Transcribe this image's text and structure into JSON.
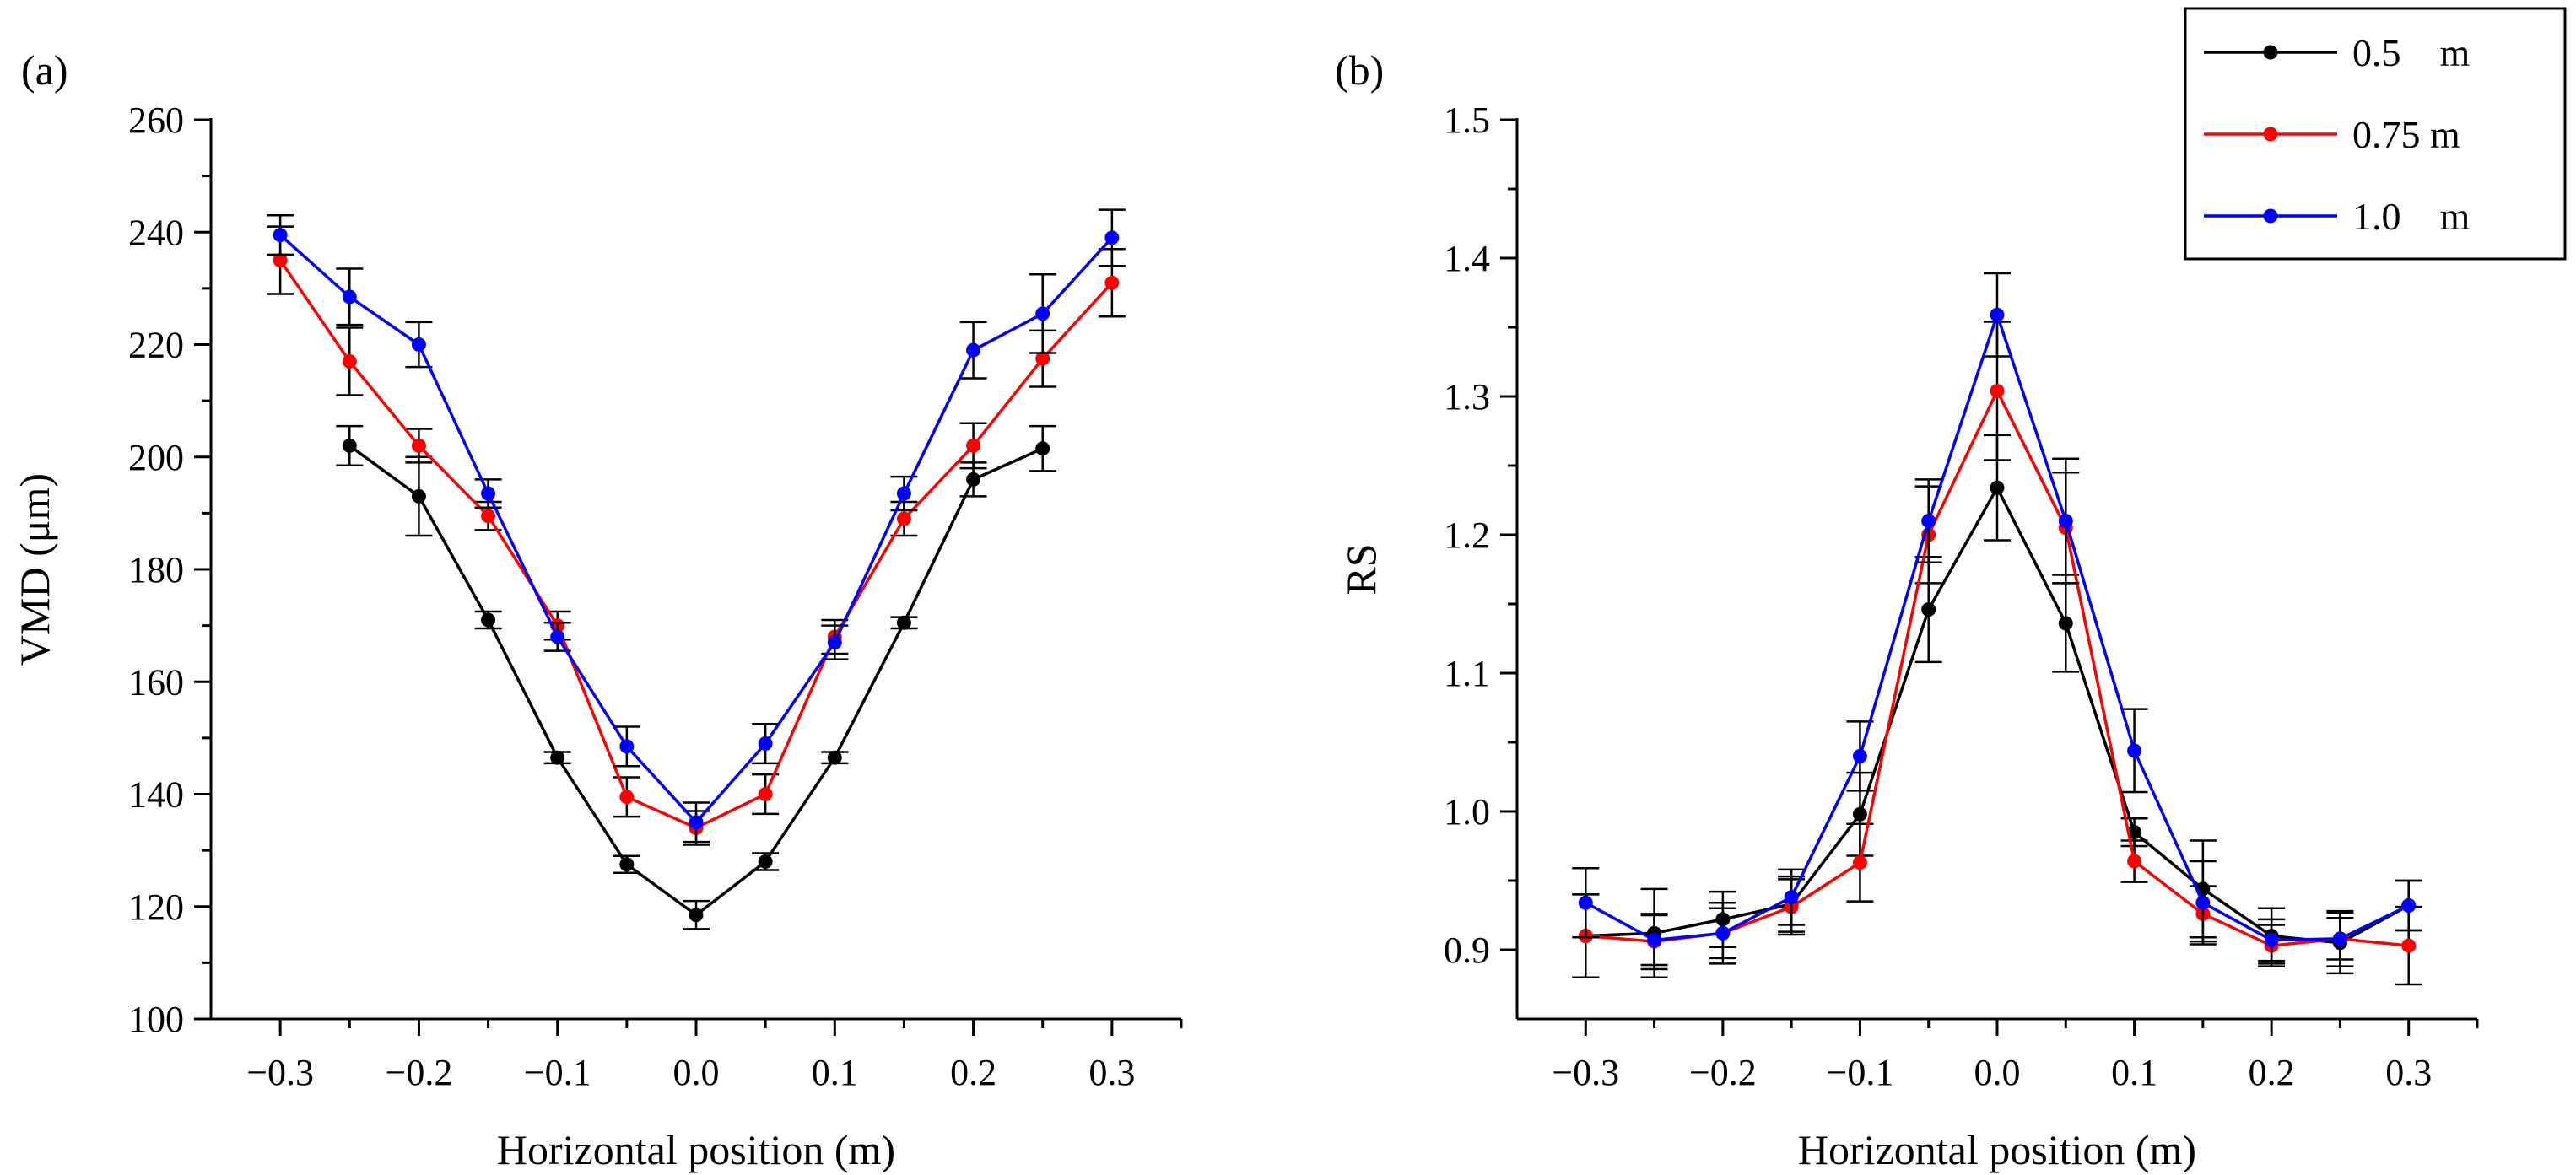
{
  "chart_data": [
    {
      "type": "line",
      "panel_label": "(a)",
      "title": "",
      "xlabel": "Horizontal position (m)",
      "ylabel": "VMD (μm)",
      "xlim": [
        -0.35,
        0.35
      ],
      "ylim": [
        100,
        260
      ],
      "xticks": [
        -0.3,
        -0.2,
        -0.1,
        0.0,
        0.1,
        0.2,
        0.3
      ],
      "xtick_labels": [
        "−0.3",
        "−0.2",
        "−0.1",
        "0.0",
        "0.1",
        "0.2",
        "0.3"
      ],
      "yticks": [
        100,
        120,
        140,
        160,
        180,
        200,
        220,
        240,
        260
      ],
      "ytick_labels": [
        "100",
        "120",
        "140",
        "160",
        "180",
        "200",
        "220",
        "240",
        "260"
      ],
      "grid": false,
      "x": [
        -0.3,
        -0.25,
        -0.2,
        -0.15,
        -0.1,
        -0.05,
        0.0,
        0.05,
        0.1,
        0.15,
        0.2,
        0.25,
        0.3
      ],
      "series": [
        {
          "name": "0.5 m",
          "color": "#000000",
          "x": [
            -0.25,
            -0.2,
            -0.15,
            -0.1,
            -0.05,
            0.0,
            0.05,
            0.1,
            0.15,
            0.2,
            0.25
          ],
          "values": [
            202,
            193,
            171,
            146.5,
            127.5,
            118.5,
            128,
            146.5,
            170.5,
            196,
            201.5
          ],
          "errors": [
            3.5,
            7,
            1.5,
            1,
            1.5,
            2.5,
            1.5,
            1,
            1,
            3,
            4
          ]
        },
        {
          "name": "0.75 m",
          "color": "#ff0000",
          "x": [
            -0.3,
            -0.25,
            -0.2,
            -0.15,
            -0.1,
            -0.05,
            0.0,
            0.05,
            0.1,
            0.15,
            0.2,
            0.25,
            0.3
          ],
          "values": [
            235,
            217,
            202,
            189.5,
            170,
            139.5,
            134,
            140,
            168,
            189,
            202,
            217.5,
            231
          ],
          "errors": [
            6,
            6,
            3,
            2.5,
            2.5,
            3.5,
            3,
            3.5,
            3,
            3,
            4,
            5,
            6
          ]
        },
        {
          "name": "1.0 m",
          "color": "#0000ff",
          "x": [
            -0.3,
            -0.25,
            -0.2,
            -0.15,
            -0.1,
            -0.05,
            0.0,
            0.05,
            0.1,
            0.15,
            0.2,
            0.25,
            0.3
          ],
          "values": [
            239.5,
            228.5,
            220,
            193.5,
            168,
            148.5,
            135,
            149,
            167,
            193.5,
            219,
            225.5,
            239
          ],
          "errors": [
            3.5,
            5,
            4,
            2.5,
            2.5,
            3.5,
            3.5,
            3.5,
            3,
            3,
            5,
            7,
            5
          ]
        }
      ]
    },
    {
      "type": "line",
      "panel_label": "(b)",
      "title": "",
      "xlabel": "Horizontal position (m)",
      "ylabel": "RS",
      "xlim": [
        -0.35,
        0.35
      ],
      "ylim": [
        0.85,
        1.5
      ],
      "xticks": [
        -0.3,
        -0.2,
        -0.1,
        0.0,
        0.1,
        0.2,
        0.3
      ],
      "xtick_labels": [
        "−0.3",
        "−0.2",
        "−0.1",
        "0.0",
        "0.1",
        "0.2",
        "0.3"
      ],
      "yticks": [
        0.9,
        1.0,
        1.1,
        1.2,
        1.3,
        1.4,
        1.5
      ],
      "ytick_labels": [
        "0.9",
        "1.0",
        "1.1",
        "1.2",
        "1.3",
        "1.4",
        "1.5"
      ],
      "grid": false,
      "x": [
        -0.3,
        -0.25,
        -0.2,
        -0.15,
        -0.1,
        -0.05,
        0.0,
        0.05,
        0.1,
        0.15,
        0.2,
        0.25,
        0.3
      ],
      "series": [
        {
          "name": "0.5 m",
          "color": "#000000",
          "x": [
            -0.3,
            -0.25,
            -0.2,
            -0.15,
            -0.1,
            -0.05,
            0.0,
            0.05,
            0.1,
            0.15,
            0.2,
            0.25,
            0.3
          ],
          "values": [
            0.91,
            0.912,
            0.922,
            0.933,
            0.998,
            1.146,
            1.234,
            1.136,
            0.985,
            0.944,
            0.91,
            0.905,
            0.932
          ],
          "errors": [
            0.03,
            0.032,
            0.02,
            0.02,
            0.03,
            0.038,
            0.038,
            0.035,
            0.01,
            0.035,
            0.02,
            0.022,
            0.018
          ]
        },
        {
          "name": "0.75 m",
          "color": "#ff0000",
          "x": [
            -0.3,
            -0.25,
            -0.2,
            -0.15,
            -0.1,
            -0.05,
            0.0,
            0.05,
            0.1,
            0.15,
            0.2,
            0.25,
            0.3
          ],
          "values": [
            0.91,
            0.906,
            0.912,
            0.931,
            0.963,
            1.2,
            1.304,
            1.205,
            0.964,
            0.926,
            0.903,
            0.908,
            0.903
          ],
          "errors": [
            0.03,
            0.02,
            0.022,
            0.02,
            0.028,
            0.035,
            0.05,
            0.04,
            0.015,
            0.02,
            0.015,
            0.02,
            0.028
          ]
        },
        {
          "name": "1.0 m",
          "color": "#0000ff",
          "x": [
            -0.3,
            -0.25,
            -0.2,
            -0.15,
            -0.1,
            -0.05,
            0.0,
            0.05,
            0.1,
            0.15,
            0.2,
            0.25,
            0.3
          ],
          "values": [
            0.934,
            0.907,
            0.912,
            0.938,
            1.04,
            1.21,
            1.359,
            1.21,
            1.044,
            0.934,
            0.907,
            0.908,
            0.932
          ],
          "errors": [
            0.025,
            0.018,
            0.018,
            0.02,
            0.025,
            0.03,
            0.03,
            0.045,
            0.03,
            0.03,
            0.015,
            0.015,
            0.018
          ]
        }
      ]
    }
  ],
  "legend": {
    "placement": "top-right",
    "entries": [
      {
        "label": "0.5    m",
        "color": "#000000"
      },
      {
        "label": "0.75 m",
        "color": "#ff0000"
      },
      {
        "label": "1.0    m",
        "color": "#0000ff"
      }
    ]
  }
}
